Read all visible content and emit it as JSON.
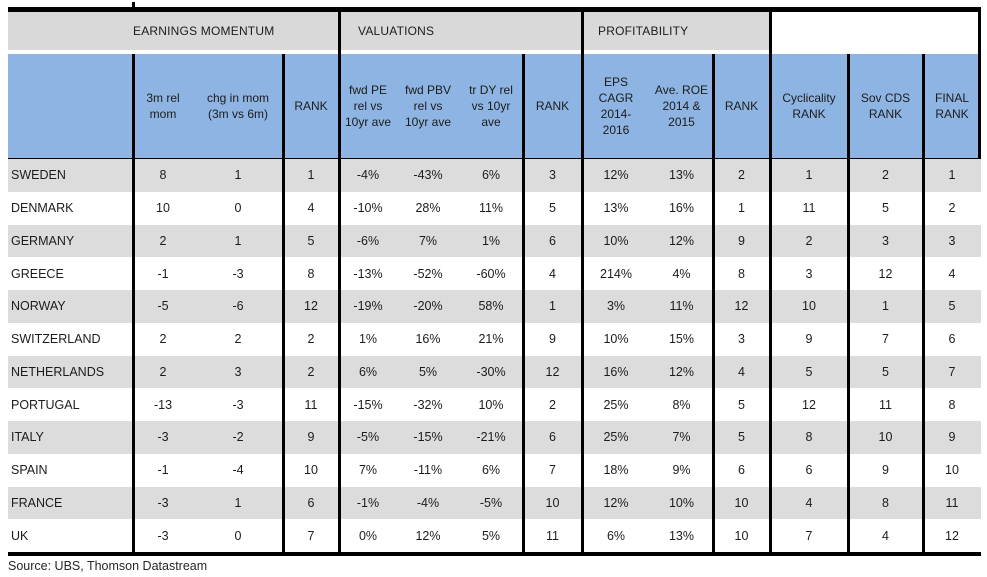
{
  "table": {
    "section_headers": {
      "earnings": "EARNINGS MOMENTUM",
      "valuations": "VALUATIONS",
      "profitability": "PROFITABILITY"
    },
    "column_headers": [
      "3m rel\nmom",
      "chg in mom\n(3m vs 6m)",
      "RANK",
      "fwd PE\nrel vs\n10yr ave",
      "fwd PBV\nrel vs\n10yr ave",
      "tr DY rel\nvs 10yr\nave",
      "RANK",
      "EPS\nCAGR\n2014-\n2016",
      "Ave. ROE\n2014 &\n2015",
      "RANK",
      "Cyclicality\nRANK",
      "Sov CDS\nRANK",
      "FINAL\nRANK"
    ],
    "rows": [
      {
        "country": "SWEDEN",
        "values": [
          "8",
          "1",
          "1",
          "-4%",
          "-43%",
          "6%",
          "3",
          "12%",
          "13%",
          "2",
          "1",
          "2",
          "1"
        ]
      },
      {
        "country": "DENMARK",
        "values": [
          "10",
          "0",
          "4",
          "-10%",
          "28%",
          "11%",
          "5",
          "13%",
          "16%",
          "1",
          "11",
          "5",
          "2"
        ]
      },
      {
        "country": "GERMANY",
        "values": [
          "2",
          "1",
          "5",
          "-6%",
          "7%",
          "1%",
          "6",
          "10%",
          "12%",
          "9",
          "2",
          "3",
          "3"
        ]
      },
      {
        "country": "GREECE",
        "values": [
          "-1",
          "-3",
          "8",
          "-13%",
          "-52%",
          "-60%",
          "4",
          "214%",
          "4%",
          "8",
          "3",
          "12",
          "4"
        ]
      },
      {
        "country": "NORWAY",
        "values": [
          "-5",
          "-6",
          "12",
          "-19%",
          "-20%",
          "58%",
          "1",
          "3%",
          "11%",
          "12",
          "10",
          "1",
          "5"
        ]
      },
      {
        "country": "SWITZERLAND",
        "values": [
          "2",
          "2",
          "2",
          "1%",
          "16%",
          "21%",
          "9",
          "10%",
          "15%",
          "3",
          "9",
          "7",
          "6"
        ]
      },
      {
        "country": "NETHERLANDS",
        "values": [
          "2",
          "3",
          "2",
          "6%",
          "5%",
          "-30%",
          "12",
          "16%",
          "12%",
          "4",
          "5",
          "5",
          "7"
        ]
      },
      {
        "country": "PORTUGAL",
        "values": [
          "-13",
          "-3",
          "11",
          "-15%",
          "-32%",
          "10%",
          "2",
          "25%",
          "8%",
          "5",
          "12",
          "11",
          "8"
        ]
      },
      {
        "country": "ITALY",
        "values": [
          "-3",
          "-2",
          "9",
          "-5%",
          "-15%",
          "-21%",
          "6",
          "25%",
          "7%",
          "5",
          "8",
          "10",
          "9"
        ]
      },
      {
        "country": "SPAIN",
        "values": [
          "-1",
          "-4",
          "10",
          "7%",
          "-11%",
          "6%",
          "7",
          "18%",
          "9%",
          "6",
          "6",
          "9",
          "10"
        ]
      },
      {
        "country": "FRANCE",
        "values": [
          "-3",
          "1",
          "6",
          "-1%",
          "-4%",
          "-5%",
          "10",
          "12%",
          "10%",
          "10",
          "4",
          "8",
          "11"
        ]
      },
      {
        "country": "UK",
        "values": [
          "-3",
          "0",
          "7",
          "0%",
          "12%",
          "5%",
          "11",
          "6%",
          "13%",
          "10",
          "7",
          "4",
          "12"
        ]
      }
    ]
  },
  "source_note": "Source: UBS, Thomson Datastream",
  "colors": {
    "header_blue": "#8db4e2",
    "section_band_gray": "#d9d9d9",
    "row_shade_gray": "#dcdcdc",
    "line_black": "#000000"
  }
}
